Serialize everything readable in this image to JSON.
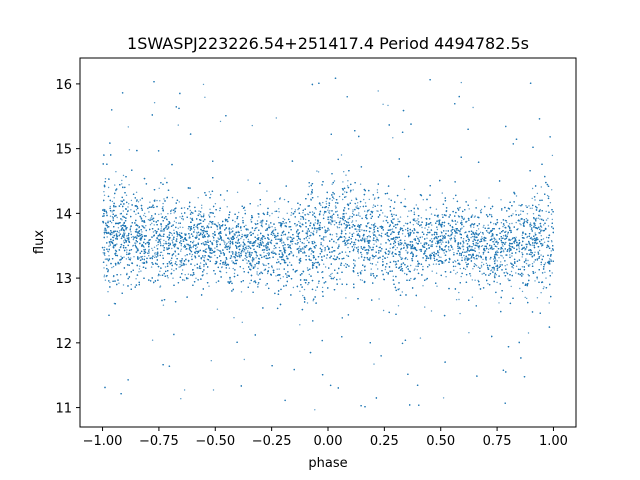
{
  "chart_data": {
    "type": "scatter",
    "title": "1SWASPJ223226.54+251417.4 Period 4494782.5s",
    "xlabel": "phase",
    "ylabel": "flux",
    "xlim": [
      -1.1,
      1.1
    ],
    "ylim": [
      10.7,
      16.4
    ],
    "x_ticks": [
      -1.0,
      -0.75,
      -0.5,
      -0.25,
      0.0,
      0.25,
      0.5,
      0.75,
      1.0
    ],
    "x_tick_labels": [
      "−1.00",
      "−0.75",
      "−0.50",
      "−0.25",
      "0.00",
      "0.25",
      "0.50",
      "0.75",
      "1.00"
    ],
    "y_ticks": [
      11,
      12,
      13,
      14,
      15,
      16
    ],
    "y_tick_labels": [
      "11",
      "12",
      "13",
      "14",
      "15",
      "16"
    ],
    "grid": false,
    "legend": "none",
    "point_color": "#1f77b4",
    "point_count_approx": 12000,
    "flux_profile": [
      {
        "phase": -1.0,
        "median": 13.65,
        "spread": 0.45
      },
      {
        "phase": -0.9,
        "median": 13.7,
        "spread": 0.4
      },
      {
        "phase": -0.75,
        "median": 13.6,
        "spread": 0.35
      },
      {
        "phase": -0.5,
        "median": 13.55,
        "spread": 0.3
      },
      {
        "phase": -0.25,
        "median": 13.45,
        "spread": 0.3
      },
      {
        "phase": 0.0,
        "median": 13.65,
        "spread": 0.45
      },
      {
        "phase": 0.1,
        "median": 13.7,
        "spread": 0.4
      },
      {
        "phase": 0.25,
        "median": 13.6,
        "spread": 0.35
      },
      {
        "phase": 0.5,
        "median": 13.55,
        "spread": 0.3
      },
      {
        "phase": 0.75,
        "median": 13.45,
        "spread": 0.3
      },
      {
        "phase": 1.0,
        "median": 13.65,
        "spread": 0.45
      }
    ],
    "flux_range": [
      10.95,
      16.15
    ]
  }
}
